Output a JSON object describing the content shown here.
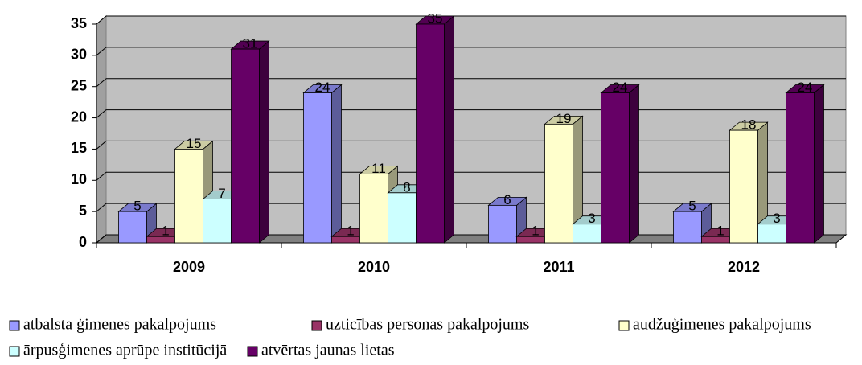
{
  "chart_data": {
    "type": "bar3d",
    "categories": [
      "2009",
      "2010",
      "2011",
      "2012"
    ],
    "series": [
      {
        "name": "atbalsta ģimenes pakalpojums",
        "color": "#9999ff",
        "values": [
          5,
          24,
          6,
          5
        ]
      },
      {
        "name": "uzticības personas pakalpojums",
        "color": "#993366",
        "values": [
          1,
          1,
          1,
          1
        ]
      },
      {
        "name": "audžuģimenes pakalpojums",
        "color": "#ffffcc",
        "values": [
          15,
          11,
          19,
          18
        ]
      },
      {
        "name": "ārpusģimenes aprūpe institūcijā",
        "color": "#ccffff",
        "values": [
          7,
          8,
          3,
          3
        ]
      },
      {
        "name": "atvērtas jaunas lietas",
        "color": "#660066",
        "values": [
          31,
          35,
          24,
          24
        ]
      }
    ],
    "ylim": [
      0,
      35
    ],
    "yticks": [
      0,
      5,
      10,
      15,
      20,
      25,
      30,
      35
    ],
    "grid": true,
    "legend": "bottom"
  }
}
